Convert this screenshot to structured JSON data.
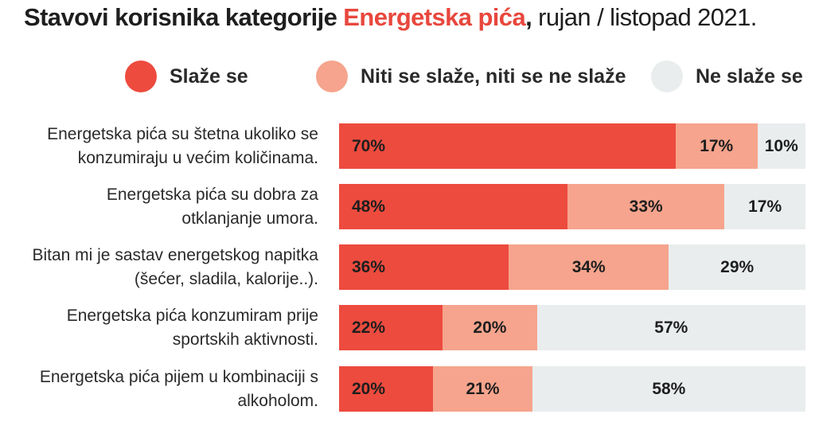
{
  "title": {
    "prefix": "Stavovi korisnika kategorije ",
    "highlight": "Energetska pića",
    "comma": ",",
    "suffix": " rujan / listopad 2021."
  },
  "colors": {
    "agree": "#ed4b3e",
    "neutral": "#f6a48d",
    "disagree": "#e9edee",
    "accent": "#e8473d"
  },
  "chart_data": {
    "type": "bar",
    "orientation": "horizontal",
    "stacked": true,
    "unit": "%",
    "legend_position": "top",
    "grid": false,
    "categories": [
      [
        "Energetska pića su štetna ukoliko se",
        "konzumiraju u većim količinama."
      ],
      [
        "Energetska pića su dobra za",
        "otklanjanje umora."
      ],
      [
        "Bitan mi je sastav energetskog napitka",
        "(šećer, sladila, kalorije..)."
      ],
      [
        "Energetska pića konzumiram prije",
        "sportskih aktivnosti."
      ],
      [
        "Energetska pića pijem u kombinaciji s",
        "alkoholom."
      ]
    ],
    "series": [
      {
        "name": "Slaže se",
        "values": [
          70,
          48,
          36,
          22,
          20
        ],
        "labels": [
          "70%",
          "48%",
          "36%",
          "22%",
          "20%"
        ]
      },
      {
        "name": "Niti se slaže, niti se ne slaže",
        "values": [
          17,
          33,
          34,
          20,
          21
        ],
        "labels": [
          "17%",
          "33%",
          "34%",
          "20%",
          "21%"
        ]
      },
      {
        "name": "Ne slaže se",
        "values": [
          10,
          17,
          29,
          57,
          58
        ],
        "labels": [
          "10%",
          "17%",
          "29%",
          "57%",
          "58%"
        ]
      }
    ]
  }
}
